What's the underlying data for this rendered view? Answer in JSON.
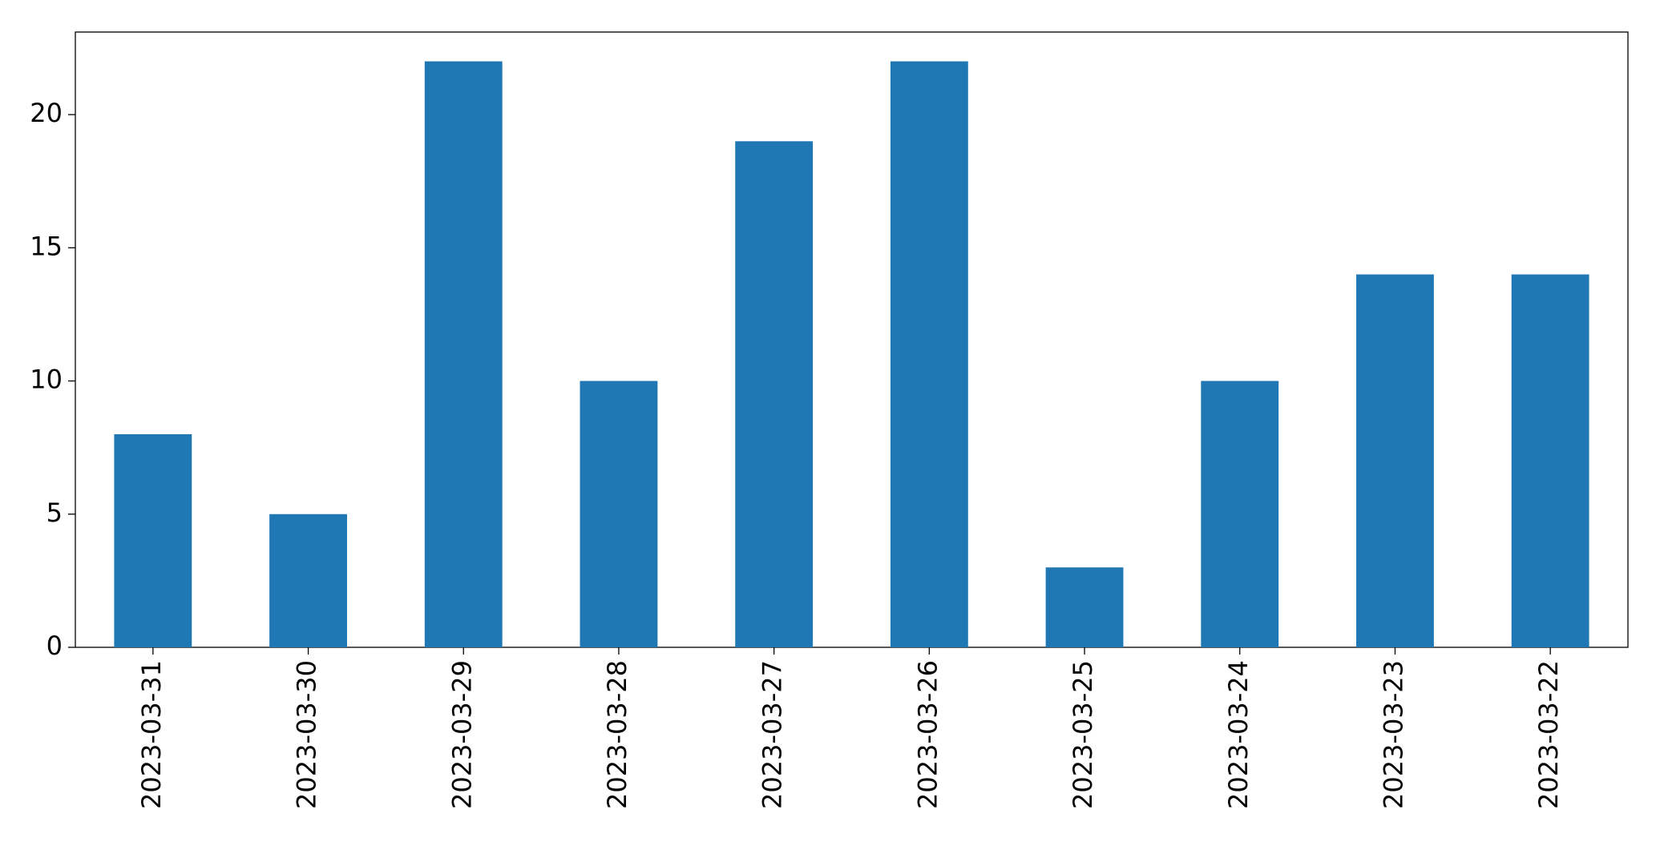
{
  "chart_data": {
    "type": "bar",
    "categories": [
      "2023-03-31",
      "2023-03-30",
      "2023-03-29",
      "2023-03-28",
      "2023-03-27",
      "2023-03-26",
      "2023-03-25",
      "2023-03-24",
      "2023-03-23",
      "2023-03-22"
    ],
    "values": [
      8,
      5,
      22,
      10,
      19,
      22,
      3,
      10,
      14,
      14
    ],
    "color": "#1f77b4",
    "ylim": [
      0,
      23.1
    ],
    "yticks": [
      0,
      5,
      10,
      15,
      20
    ],
    "grid": false
  }
}
